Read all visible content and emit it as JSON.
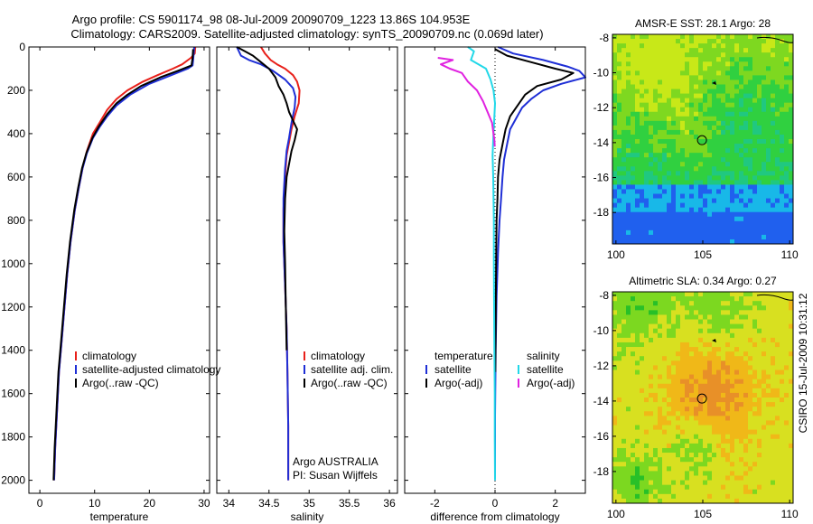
{
  "figure": {
    "title_line1": "Argo profile: CS 5901174_98 08-Jul-2009 20090709_1223 13.86S 104.953E",
    "title_line2": "Climatology: CARS2009. Satellite-adjusted climatology: synTS_20090709.nc (0.069d later)",
    "credit_sideways": "CSIRO 15-Jul-2009 10:31:12"
  },
  "chart_data": [
    {
      "id": "temperature",
      "type": "line",
      "xlabel": "temperature",
      "ylabel": "",
      "xlim": [
        -2,
        31
      ],
      "ylim": [
        0,
        2060
      ],
      "y_reversed": true,
      "xticks": [
        0,
        10,
        20,
        30
      ],
      "yticks": [
        0,
        200,
        400,
        600,
        800,
        1000,
        1200,
        1400,
        1600,
        1800,
        2000
      ],
      "colors": {
        "climatology": "#e8201a",
        "satellite": "#1f2fd6",
        "argo": "#000000"
      },
      "legend": [
        {
          "label": "climatology",
          "color": "#e8201a"
        },
        {
          "label": "satellite-adjusted climatology",
          "color": "#1f2fd6"
        },
        {
          "label": "Argo(..raw -QC)",
          "color": "#000000"
        }
      ],
      "series": [
        {
          "name": "climatology",
          "color": "#e8201a",
          "x": [
            28.4,
            28.3,
            27.6,
            26.0,
            24.3,
            21.5,
            18.8,
            16.0,
            14.0,
            12.3,
            10.9,
            9.7,
            8.6,
            7.8,
            7.1,
            6.4,
            5.6,
            5.0,
            4.5,
            4.0,
            3.5,
            3.1,
            2.8,
            2.6
          ],
          "y": [
            0,
            30,
            50,
            80,
            100,
            130,
            160,
            200,
            240,
            290,
            350,
            400,
            480,
            560,
            650,
            750,
            900,
            1050,
            1200,
            1350,
            1500,
            1700,
            1850,
            2000
          ]
        },
        {
          "name": "satellite-adjusted climatology",
          "color": "#1f2fd6",
          "x": [
            28.2,
            28.1,
            28.0,
            27.9,
            27.0,
            24.0,
            20.0,
            16.5,
            14.0,
            12.3,
            10.9,
            9.7,
            8.6,
            7.8,
            7.1,
            6.4,
            5.6,
            5.0,
            4.5,
            4.0,
            3.5,
            3.1,
            2.8,
            2.6
          ],
          "y": [
            0,
            30,
            60,
            85,
            100,
            130,
            170,
            220,
            270,
            320,
            370,
            420,
            490,
            560,
            650,
            750,
            900,
            1050,
            1200,
            1350,
            1500,
            1700,
            1850,
            2000
          ]
        },
        {
          "name": "Argo(..raw -QC)",
          "color": "#000000",
          "x": [
            28.0,
            27.9,
            27.7,
            25.2,
            22.0,
            18.5,
            16.0,
            14.0,
            12.3,
            10.7,
            9.6,
            8.5,
            7.7,
            7.0,
            6.3,
            5.5,
            4.9,
            4.4,
            3.9,
            3.4,
            3.0,
            2.7,
            2.5
          ],
          "y": [
            10,
            50,
            85,
            110,
            140,
            180,
            220,
            260,
            310,
            370,
            420,
            490,
            560,
            650,
            750,
            900,
            1050,
            1200,
            1350,
            1500,
            1700,
            1850,
            2000
          ]
        }
      ]
    },
    {
      "id": "salinity",
      "type": "line",
      "xlabel": "salinity",
      "xlim": [
        33.85,
        36.1
      ],
      "ylim": [
        0,
        2060
      ],
      "y_reversed": true,
      "xticks": [
        34,
        34.5,
        35,
        35.5,
        36
      ],
      "colors": {
        "climatology": "#e8201a",
        "satellite": "#1f2fd6",
        "argo": "#000000"
      },
      "legend": [
        {
          "label": "climatology",
          "color": "#e8201a"
        },
        {
          "label": "satellite adj. clim.",
          "color": "#1f2fd6"
        },
        {
          "label": "Argo(..raw -QC)",
          "color": "#000000"
        }
      ],
      "annotation_lines": [
        "Argo AUSTRALIA",
        "PI: Susan Wijffels"
      ],
      "series": [
        {
          "name": "climatology",
          "color": "#e8201a",
          "x": [
            34.4,
            34.45,
            34.52,
            34.6,
            34.7,
            34.8,
            34.85,
            34.88,
            34.87,
            34.82,
            34.78,
            34.75,
            34.72,
            34.7,
            34.68,
            34.68,
            34.7,
            34.72,
            34.73,
            34.74,
            34.74
          ],
          "y": [
            0,
            30,
            60,
            80,
            100,
            130,
            160,
            200,
            260,
            320,
            380,
            440,
            500,
            600,
            750,
            900,
            1100,
            1300,
            1500,
            1750,
            2000
          ]
        },
        {
          "name": "satellite adj. clim.",
          "color": "#1f2fd6",
          "x": [
            34.1,
            34.15,
            34.25,
            34.4,
            34.55,
            34.7,
            34.8,
            34.83,
            34.82,
            34.78,
            34.75,
            34.72,
            34.7,
            34.68,
            34.68,
            34.7,
            34.72,
            34.73,
            34.74,
            34.74
          ],
          "y": [
            0,
            40,
            60,
            80,
            110,
            150,
            190,
            230,
            280,
            350,
            420,
            480,
            560,
            700,
            900,
            1100,
            1300,
            1500,
            1750,
            2000
          ]
        },
        {
          "name": "Argo(..raw -QC)",
          "color": "#000000",
          "x": [
            34.1,
            34.2,
            34.3,
            34.4,
            34.5,
            34.58,
            34.62,
            34.68,
            34.72,
            34.75,
            34.8,
            34.85,
            34.82,
            34.78,
            34.75,
            34.72,
            34.7,
            34.69,
            34.7,
            34.71,
            34.72
          ],
          "y": [
            0,
            20,
            40,
            70,
            100,
            140,
            180,
            220,
            260,
            300,
            340,
            380,
            430,
            480,
            540,
            600,
            700,
            850,
            1000,
            1200,
            1400
          ]
        }
      ]
    },
    {
      "id": "difference",
      "type": "line",
      "xlabel": "difference from climatology",
      "xlim": [
        -3,
        3
      ],
      "ylim": [
        0,
        2060
      ],
      "y_reversed": true,
      "xticks": [
        -2,
        0,
        2
      ],
      "zero_line": true,
      "colors": {
        "satellite": "#1f2fd6",
        "argo": "#000000",
        "sal_satellite": "#22d8e8",
        "sal_argo": "#e022e0"
      },
      "legend_headers": [
        "temperature",
        "salinity"
      ],
      "legend": [
        {
          "label": "satellite",
          "color": "#1f2fd6"
        },
        {
          "label": "Argo(-adj)",
          "color": "#000000"
        },
        {
          "label": "satellite",
          "color": "#22d8e8"
        },
        {
          "label": "Argo(-adj)",
          "color": "#e022e0"
        }
      ],
      "series": [
        {
          "name": "satellite",
          "color": "#1f2fd6",
          "x": [
            0.1,
            0.6,
            1.6,
            2.4,
            2.8,
            3.0,
            2.2,
            1.6,
            1.2,
            0.9,
            0.7,
            0.5,
            0.4,
            0.3,
            0.25,
            0.2,
            0.15,
            0.1,
            0.05,
            0.02,
            0.0,
            0.0
          ],
          "y": [
            0,
            30,
            60,
            90,
            110,
            140,
            170,
            200,
            240,
            280,
            330,
            380,
            450,
            520,
            600,
            700,
            800,
            950,
            1150,
            1400,
            1700,
            2000
          ]
        },
        {
          "name": "Argo(-adj)",
          "color": "#000000",
          "x": [
            0.0,
            0.4,
            1.2,
            2.0,
            2.6,
            2.2,
            1.4,
            1.0,
            0.8,
            0.5,
            0.35,
            0.25,
            0.15,
            0.1,
            0.08,
            0.05,
            0.04,
            0.03,
            0.02,
            0.01
          ],
          "y": [
            10,
            40,
            70,
            100,
            120,
            150,
            180,
            220,
            260,
            320,
            380,
            450,
            520,
            600,
            700,
            800,
            950,
            1100,
            1300,
            1500
          ]
        },
        {
          "name": "satellite (salinity)",
          "color": "#22d8e8",
          "x": [
            -0.9,
            -0.7,
            -0.8,
            -0.3,
            -0.15,
            -0.05,
            0.0,
            -0.02,
            -0.05,
            -0.08,
            -0.06,
            -0.04,
            -0.04,
            -0.03,
            -0.02,
            -0.01,
            -0.01,
            0.0
          ],
          "y": [
            0,
            20,
            60,
            100,
            150,
            200,
            260,
            320,
            400,
            500,
            600,
            800,
            1000,
            1200,
            1400,
            1600,
            1800,
            2000
          ]
        },
        {
          "name": "Argo(-adj) (salinity)",
          "color": "#e022e0",
          "x": [
            -1.9,
            -1.4,
            -1.8,
            -1.5,
            -1.1,
            -0.9,
            -0.6,
            -0.4,
            -0.25,
            -0.1,
            -0.05,
            -0.02,
            -0.01
          ],
          "y": [
            50,
            60,
            80,
            100,
            120,
            160,
            200,
            250,
            300,
            350,
            400,
            430,
            460
          ]
        }
      ]
    },
    {
      "id": "sst_map",
      "type": "heatmap",
      "title": "AMSR-E SST: 28.1 Argo: 28",
      "xticks": [
        100,
        105,
        110
      ],
      "yticks": [
        -8,
        -10,
        -12,
        -14,
        -16,
        -18
      ],
      "xlim": [
        99.8,
        110.2
      ],
      "ylim": [
        -19.8,
        -7.8
      ],
      "colors": [
        "#2060ee",
        "#18b8e8",
        "#20c880",
        "#30d040",
        "#7ed820",
        "#c8e818"
      ],
      "marker": {
        "lon": 104.953,
        "lat": -13.86
      }
    },
    {
      "id": "sla_map",
      "type": "heatmap",
      "title": "Altimetric SLA: 0.34 Argo: 0.27",
      "xticks": [
        100,
        105,
        110
      ],
      "yticks": [
        -8,
        -10,
        -12,
        -14,
        -16,
        -18
      ],
      "xlim": [
        99.8,
        110.2
      ],
      "ylim": [
        -19.8,
        -7.8
      ],
      "colors": [
        "#28c028",
        "#7cd820",
        "#d8e020",
        "#f0b818",
        "#e89028"
      ],
      "marker": {
        "lon": 104.953,
        "lat": -13.86
      }
    }
  ]
}
